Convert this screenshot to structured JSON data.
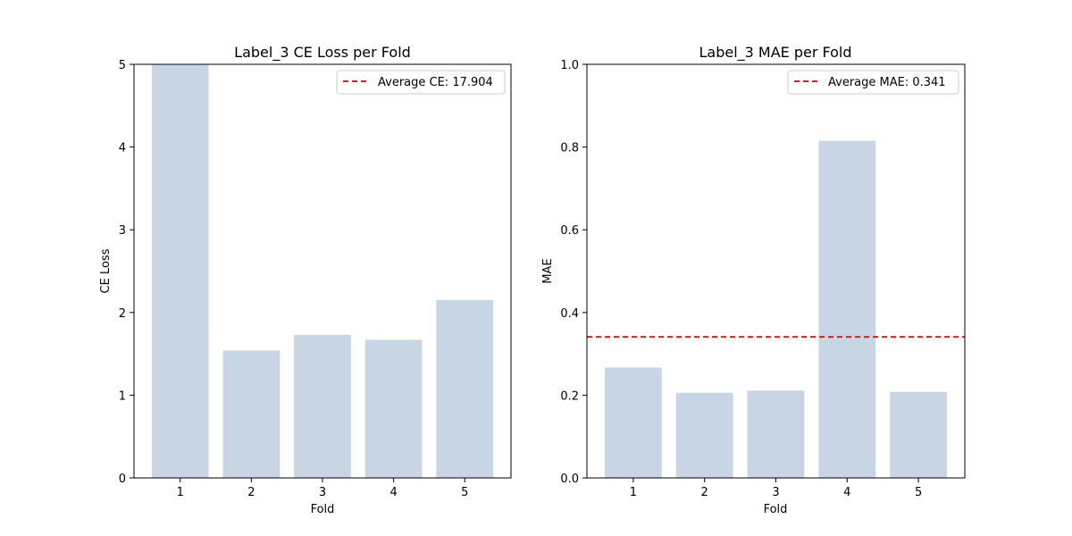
{
  "chart_data": [
    {
      "type": "bar",
      "title": "Label_3 CE Loss per Fold",
      "xlabel": "Fold",
      "ylabel": "CE Loss",
      "categories": [
        "1",
        "2",
        "3",
        "4",
        "5"
      ],
      "values": [
        5.0,
        1.54,
        1.73,
        1.67,
        2.15
      ],
      "ylim": [
        0,
        5
      ],
      "yticks": [
        "0",
        "1",
        "2",
        "3",
        "4",
        "5"
      ],
      "average_line": {
        "value": 17.904,
        "label": "Average CE: 17.904"
      },
      "legend_position": "top-right",
      "grid": false,
      "bar_color": "#c8d5e5",
      "line_color": "#e41a1c"
    },
    {
      "type": "bar",
      "title": "Label_3 MAE per Fold",
      "xlabel": "Fold",
      "ylabel": "MAE",
      "categories": [
        "1",
        "2",
        "3",
        "4",
        "5"
      ],
      "values": [
        0.267,
        0.206,
        0.211,
        0.815,
        0.208
      ],
      "ylim": [
        0,
        1.0
      ],
      "yticks": [
        "0.0",
        "0.2",
        "0.4",
        "0.6",
        "0.8",
        "1.0"
      ],
      "average_line": {
        "value": 0.341,
        "label": "Average MAE: 0.341"
      },
      "legend_position": "top-right",
      "grid": false,
      "bar_color": "#c8d5e5",
      "line_color": "#e41a1c"
    }
  ]
}
